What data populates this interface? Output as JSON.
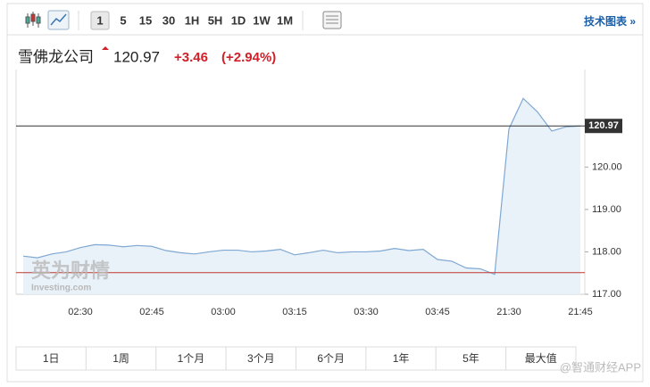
{
  "toolbar": {
    "intervals": [
      "1",
      "5",
      "15",
      "30",
      "1H",
      "5H",
      "1D",
      "1W",
      "1M"
    ],
    "selected": 0,
    "link": "技术图表 »"
  },
  "quote": {
    "name": "雪佛龙公司",
    "price": 120.97,
    "change": "+3.46",
    "change_pct": "(+2.94%)"
  },
  "chart_data": {
    "type": "line",
    "categories": [
      null,
      null,
      null,
      null,
      "02:30",
      null,
      null,
      null,
      null,
      "02:45",
      null,
      null,
      null,
      null,
      "03:00",
      null,
      null,
      null,
      null,
      "03:15",
      null,
      null,
      null,
      null,
      "03:30",
      null,
      null,
      null,
      null,
      "03:45",
      null,
      null,
      null,
      null,
      "21:30",
      null,
      null,
      null,
      null,
      "21:45"
    ],
    "series": [
      {
        "color": "#7fa8d3",
        "values": [
          117.9,
          117.86,
          117.95,
          118.0,
          118.1,
          118.17,
          118.16,
          118.12,
          118.15,
          118.13,
          118.03,
          117.98,
          117.95,
          118.0,
          118.04,
          118.04,
          118.0,
          118.02,
          118.06,
          117.93,
          117.98,
          118.04,
          117.98,
          118.0,
          118.0,
          118.02,
          118.08,
          118.03,
          118.06,
          117.82,
          117.78,
          117.62,
          117.6,
          117.47,
          120.9,
          121.62,
          121.3,
          120.85,
          120.95,
          120.97
        ]
      }
    ],
    "ylim": [
      117,
      122.3
    ],
    "yticks": [
      {
        "value": 117,
        "label": "117.00"
      },
      {
        "value": 118,
        "label": "118.00"
      },
      {
        "value": 119,
        "label": "119.00"
      },
      {
        "value": 120,
        "label": "120.00"
      }
    ],
    "prev_close": 117.51,
    "prev_close_color": "#c0392b",
    "fill": "#e9f1f9"
  },
  "logo": {
    "name": "英为财情",
    "sub": "Investing.com"
  },
  "ranges": [
    "1日",
    "1周",
    "1个月",
    "3个月",
    "6个月",
    "1年",
    "5年",
    "最大值"
  ],
  "watermark": "@智通财经APP"
}
